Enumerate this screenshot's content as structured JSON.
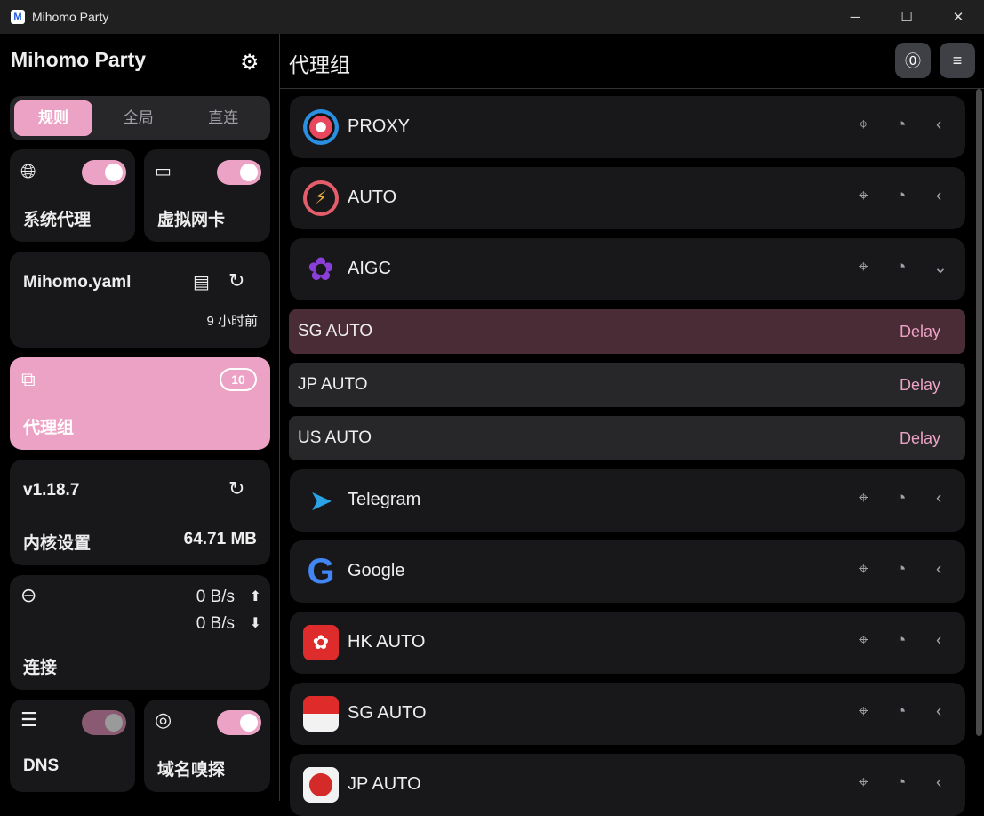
{
  "window": {
    "title": "Mihomo Party",
    "minimize": "─",
    "maximize": "☐",
    "close": "✕"
  },
  "sidebar": {
    "brand": "Mihomo Party",
    "modes": [
      {
        "label": "规则",
        "active": true
      },
      {
        "label": "全局"
      },
      {
        "label": "直连"
      }
    ],
    "system_proxy": {
      "label": "系统代理",
      "enabled": true
    },
    "tun": {
      "label": "虚拟网卡",
      "enabled": true
    },
    "profile": {
      "name": "Mihomo.yaml",
      "updated": "9 小时前"
    },
    "proxy_groups": {
      "label": "代理组",
      "count": "10"
    },
    "core": {
      "version": "v1.18.7",
      "label": "内核设置",
      "memory": "64.71 MB"
    },
    "connections": {
      "label": "连接",
      "upload": "0 B/s",
      "download": "0 B/s"
    },
    "dns": {
      "label": "DNS",
      "enabled": false
    },
    "sniff": {
      "label": "域名嗅探",
      "enabled": true
    }
  },
  "main": {
    "title": "代理组",
    "groups_top": [
      {
        "name": "PROXY",
        "icon": "proxy-icon",
        "expanded": false
      },
      {
        "name": "AUTO",
        "icon": "auto-icon",
        "expanded": false
      },
      {
        "name": "AIGC",
        "icon": "openai-icon",
        "expanded": true
      }
    ],
    "aigc_proxies": [
      {
        "name": "SG AUTO",
        "delay": "Delay",
        "selected": true
      },
      {
        "name": "JP AUTO",
        "delay": "Delay"
      },
      {
        "name": "US AUTO",
        "delay": "Delay"
      }
    ],
    "groups_bottom": [
      {
        "name": "Telegram",
        "icon": "telegram-icon"
      },
      {
        "name": "Google",
        "icon": "google-icon"
      },
      {
        "name": "HK AUTO",
        "icon": "hk-flag-icon"
      },
      {
        "name": "SG AUTO",
        "icon": "sg-flag-icon"
      },
      {
        "name": "JP AUTO",
        "icon": "jp-flag-icon"
      }
    ]
  },
  "colors": {
    "accent": "#eca2c4",
    "card": "#18181b",
    "selected": "#4a2c37"
  }
}
